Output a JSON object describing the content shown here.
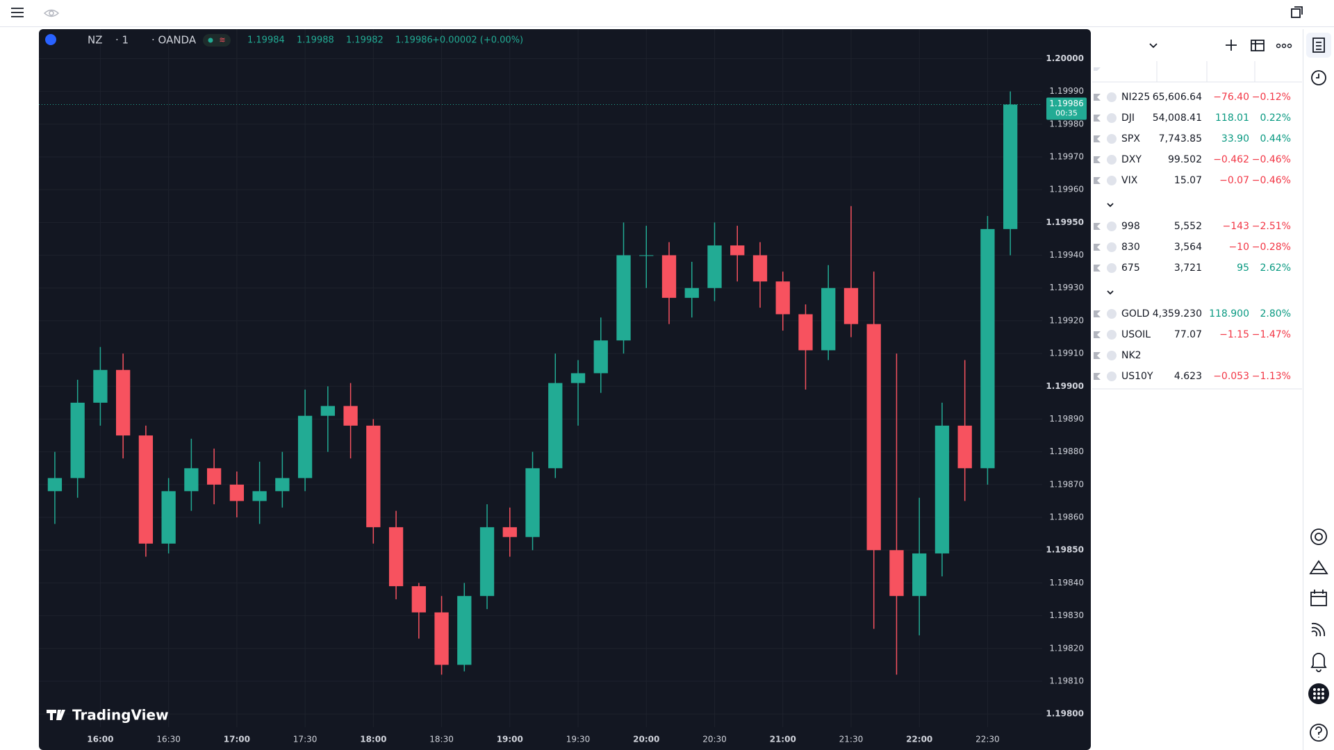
{
  "header": {
    "symbol": "NZ",
    "interval": "· 1",
    "exchange": "· OANDA",
    "ohlc": [
      "1.19984",
      "1.19988",
      "1.19982",
      "1.19986"
    ],
    "change": "+0.00002 (+0.00%)"
  },
  "chart_data": {
    "type": "candlestick",
    "up_color": "#22ab94",
    "down_color": "#f7525f",
    "grid": true,
    "x": [
      940,
      950,
      960,
      970,
      980,
      990,
      1000,
      1010,
      1020,
      1030,
      1040,
      1050,
      1060,
      1070,
      1080,
      1090,
      1100,
      1110,
      1120,
      1130,
      1140,
      1150,
      1160,
      1170,
      1180,
      1190,
      1200,
      1210,
      1220,
      1230,
      1240,
      1250,
      1260,
      1270,
      1280,
      1290,
      1300,
      1310,
      1320,
      1330,
      1340,
      1350,
      1360
    ],
    "open": [
      1.19868,
      1.19872,
      1.19895,
      1.19905,
      1.19885,
      1.19852,
      1.19868,
      1.19875,
      1.1987,
      1.19865,
      1.19868,
      1.19872,
      1.19891,
      1.19894,
      1.19888,
      1.19857,
      1.19839,
      1.19831,
      1.19815,
      1.19836,
      1.19857,
      1.19854,
      1.19875,
      1.19901,
      1.19904,
      1.19914,
      1.1994,
      1.1994,
      1.19927,
      1.1993,
      1.19943,
      1.1994,
      1.19932,
      1.19922,
      1.19911,
      1.1993,
      1.19919,
      1.1985,
      1.19836,
      1.19849,
      1.19888,
      1.19875,
      1.19948
    ],
    "high": [
      1.1988,
      1.19902,
      1.19912,
      1.1991,
      1.19888,
      1.19872,
      1.19884,
      1.19881,
      1.19874,
      1.19877,
      1.1988,
      1.19899,
      1.199,
      1.19901,
      1.1989,
      1.19862,
      1.1984,
      1.19836,
      1.1984,
      1.19864,
      1.19863,
      1.1988,
      1.1991,
      1.19908,
      1.19921,
      1.1995,
      1.19949,
      1.19944,
      1.19938,
      1.1995,
      1.19949,
      1.19944,
      1.19935,
      1.19925,
      1.19937,
      1.19955,
      1.19935,
      1.1991,
      1.19866,
      1.19895,
      1.19908,
      1.19952,
      1.1999
    ],
    "low": [
      1.19858,
      1.19866,
      1.19888,
      1.19878,
      1.19848,
      1.19849,
      1.19862,
      1.19864,
      1.1986,
      1.19858,
      1.19863,
      1.19868,
      1.1988,
      1.19878,
      1.19852,
      1.19835,
      1.19823,
      1.19812,
      1.19813,
      1.19832,
      1.19848,
      1.1985,
      1.19872,
      1.19888,
      1.19898,
      1.1991,
      1.1993,
      1.19919,
      1.19921,
      1.19926,
      1.19932,
      1.19924,
      1.19917,
      1.19899,
      1.19908,
      1.19915,
      1.19826,
      1.19812,
      1.19824,
      1.19842,
      1.19865,
      1.1987,
      1.1994
    ],
    "close": [
      1.19872,
      1.19895,
      1.19905,
      1.19885,
      1.19852,
      1.19868,
      1.19875,
      1.1987,
      1.19865,
      1.19868,
      1.19872,
      1.19891,
      1.19894,
      1.19888,
      1.19857,
      1.19839,
      1.19831,
      1.19815,
      1.19836,
      1.19857,
      1.19854,
      1.19875,
      1.19901,
      1.19904,
      1.19914,
      1.1994,
      1.1994,
      1.19927,
      1.1993,
      1.19943,
      1.1994,
      1.19932,
      1.19922,
      1.19911,
      1.1993,
      1.19919,
      1.1985,
      1.19836,
      1.19849,
      1.19888,
      1.19875,
      1.19948,
      1.19986
    ],
    "xlim": [
      933,
      1374
    ],
    "xticks": [
      {
        "value": 960,
        "label": "16:00"
      },
      {
        "value": 990,
        "label": "16:30"
      },
      {
        "value": 1020,
        "label": "17:00"
      },
      {
        "value": 1050,
        "label": "17:30"
      },
      {
        "value": 1080,
        "label": "18:00"
      },
      {
        "value": 1110,
        "label": "18:30"
      },
      {
        "value": 1140,
        "label": "19:00"
      },
      {
        "value": 1170,
        "label": "19:30"
      },
      {
        "value": 1200,
        "label": "20:00"
      },
      {
        "value": 1230,
        "label": "20:30"
      },
      {
        "value": 1260,
        "label": "21:00"
      },
      {
        "value": 1290,
        "label": "21:30"
      },
      {
        "value": 1320,
        "label": "22:00"
      },
      {
        "value": 1350,
        "label": "22:30"
      }
    ],
    "ylim": [
      1.19796,
      1.20009
    ],
    "yticks": [
      {
        "value": 1.198,
        "label": "1.19800"
      },
      {
        "value": 1.1981,
        "label": "1.19810"
      },
      {
        "value": 1.1982,
        "label": "1.19820"
      },
      {
        "value": 1.1983,
        "label": "1.19830"
      },
      {
        "value": 1.1984,
        "label": "1.19840"
      },
      {
        "value": 1.1985,
        "label": "1.19850"
      },
      {
        "value": 1.1986,
        "label": "1.19860"
      },
      {
        "value": 1.1987,
        "label": "1.19870"
      },
      {
        "value": 1.1988,
        "label": "1.19880"
      },
      {
        "value": 1.1989,
        "label": "1.19890"
      },
      {
        "value": 1.199,
        "label": "1.19900"
      },
      {
        "value": 1.1991,
        "label": "1.19910"
      },
      {
        "value": 1.1992,
        "label": "1.19920"
      },
      {
        "value": 1.1993,
        "label": "1.19930"
      },
      {
        "value": 1.1994,
        "label": "1.19940"
      },
      {
        "value": 1.1995,
        "label": "1.19950"
      },
      {
        "value": 1.1996,
        "label": "1.19960"
      },
      {
        "value": 1.1997,
        "label": "1.19970"
      },
      {
        "value": 1.1998,
        "label": "1.19980"
      },
      {
        "value": 1.1999,
        "label": "1.19990"
      },
      {
        "value": 1.2,
        "label": "1.20000"
      }
    ],
    "last_price": {
      "value": 1.19986,
      "label": "1.19986"
    },
    "countdown": "00:35",
    "branding": "TradingView"
  },
  "watchlist": {
    "groups": [
      {
        "rows": [
          {
            "symbol": "NI225",
            "last": "65,606.64",
            "change": "−76.40",
            "change_pct": "−0.12%",
            "color": "#f23645"
          },
          {
            "symbol": "DJI",
            "last": "54,008.41",
            "change": "118.01",
            "change_pct": "0.22%",
            "color": "#089981"
          },
          {
            "symbol": "SPX",
            "last": "7,743.85",
            "change": "33.90",
            "change_pct": "0.44%",
            "color": "#089981"
          },
          {
            "symbol": "DXY",
            "last": "99.502",
            "change": "−0.462",
            "change_pct": "−0.46%",
            "color": "#f23645"
          },
          {
            "symbol": "VIX",
            "last": "15.07",
            "change": "−0.07",
            "change_pct": "−0.46%",
            "color": "#f23645"
          }
        ]
      },
      {
        "rows": [
          {
            "symbol": "998",
            "last": "5,552",
            "change": "−143",
            "change_pct": "−2.51%",
            "color": "#f23645"
          },
          {
            "symbol": "830",
            "last": "3,564",
            "change": "−10",
            "change_pct": "−0.28%",
            "color": "#f23645"
          },
          {
            "symbol": "675",
            "last": "3,721",
            "change": "95",
            "change_pct": "2.62%",
            "color": "#089981"
          }
        ]
      },
      {
        "rows": [
          {
            "symbol": "GOLD",
            "last": "4,359.230",
            "change": "118.900",
            "change_pct": "2.80%",
            "color": "#089981"
          },
          {
            "symbol": "USOIL",
            "last": "77.07",
            "change": "−1.15",
            "change_pct": "−1.47%",
            "color": "#f23645"
          },
          {
            "symbol": "NK2"
          },
          {
            "symbol": "US10Y",
            "last": "4.623",
            "change": "−0.053",
            "change_pct": "−1.13%",
            "color": "#f23645"
          }
        ]
      }
    ]
  }
}
